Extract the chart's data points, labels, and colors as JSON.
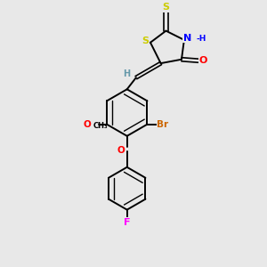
{
  "bg_color": "#e8e8e8",
  "atom_colors": {
    "S": "#cccc00",
    "N": "#0000ff",
    "O": "#ff0000",
    "Br": "#cc6600",
    "F": "#ff00ff",
    "C": "#000000",
    "H": "#6699aa"
  },
  "bond_color": "#000000",
  "bond_lw": 1.4,
  "inner_lw": 1.0,
  "inner_shrink": 0.22
}
